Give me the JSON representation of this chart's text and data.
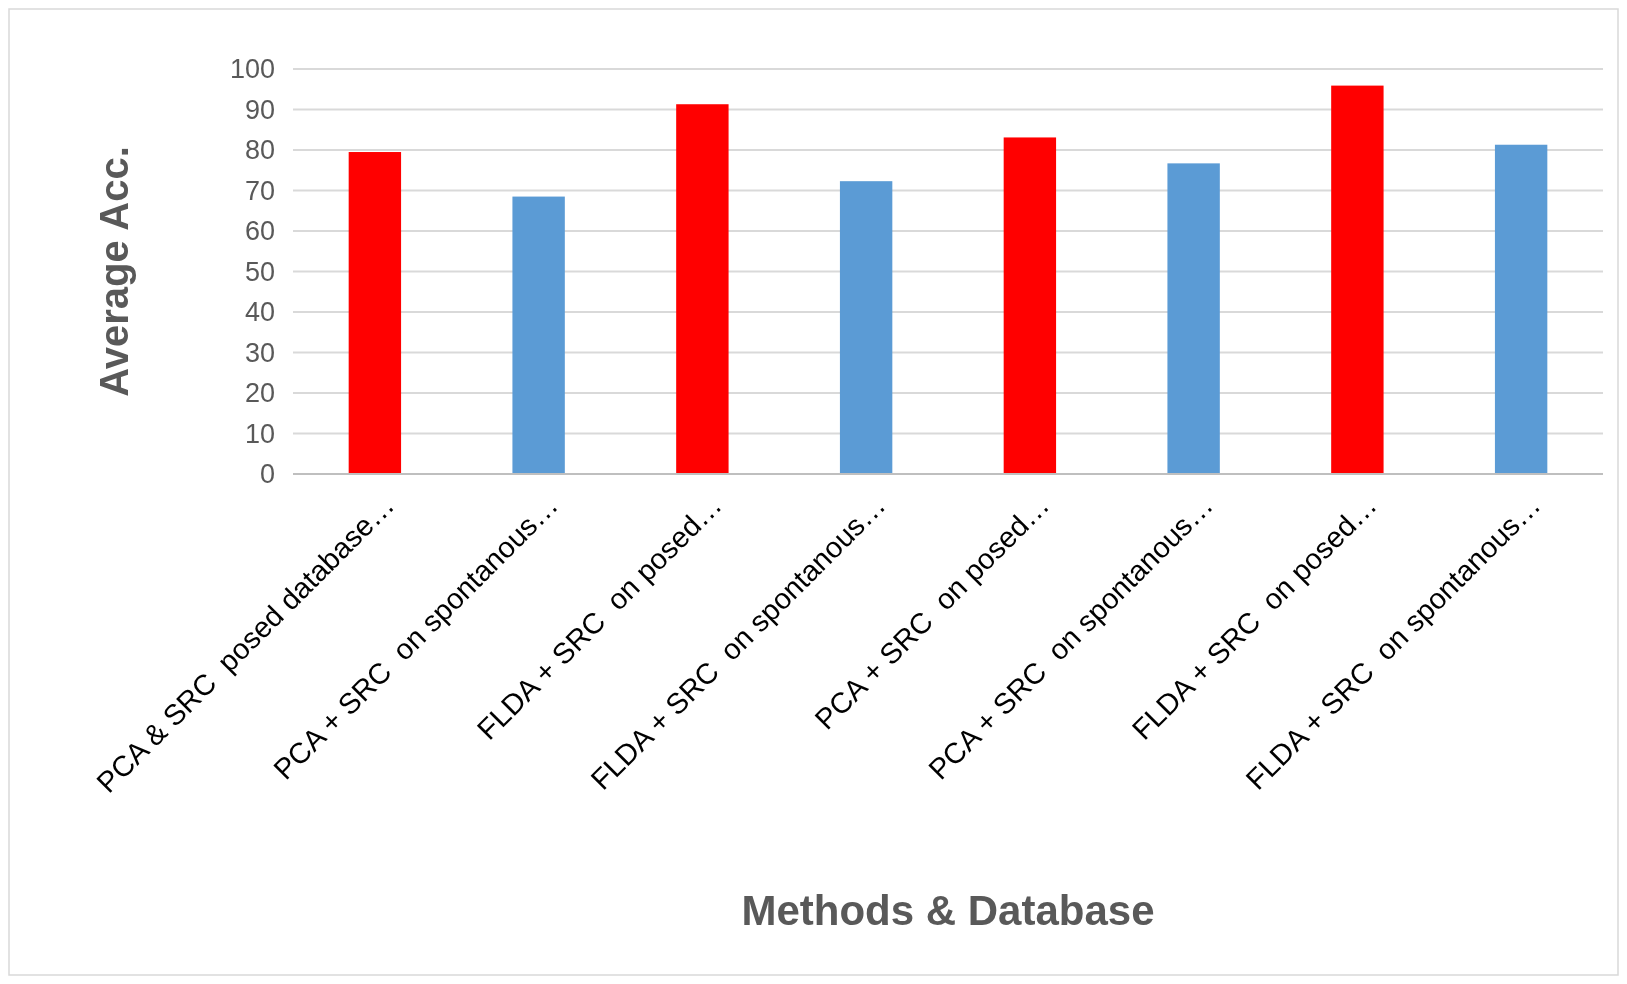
{
  "chart_data": {
    "type": "bar",
    "xlabel": "Methods & Database",
    "ylabel": "Average Acc.",
    "categories": [
      "PCA & SRC  posed database…",
      "PCA + SRC  on spontanous…",
      "FLDA + SRC  on posed…",
      "FLDA + SRC  on spontanous…",
      "PCA + SRC  on posed…",
      "PCA + SRC  on spontanous…",
      "FLDA + SRC  on posed…",
      "FLDA + SRC  on spontanous…"
    ],
    "values": [
      79.5,
      68.5,
      91.3,
      72.3,
      83.1,
      76.7,
      95.9,
      81.3
    ],
    "colors": [
      "#ff0000",
      "#5b9bd5",
      "#ff0000",
      "#5b9bd5",
      "#ff0000",
      "#5b9bd5",
      "#ff0000",
      "#5b9bd5"
    ],
    "ylim": [
      0,
      100
    ],
    "yticks": [
      0,
      10,
      20,
      30,
      40,
      50,
      60,
      70,
      80,
      90,
      100
    ],
    "grid": "y"
  }
}
